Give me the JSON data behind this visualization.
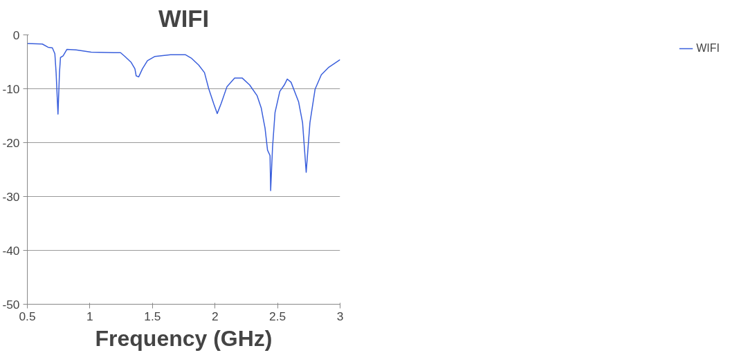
{
  "chart_data": {
    "type": "line",
    "title": "WIFI",
    "xlabel": "Frequency (GHz)",
    "xlim": [
      0.5,
      3
    ],
    "xticks": [
      0.5,
      1,
      1.5,
      2,
      2.5,
      3
    ],
    "ylim": [
      -50,
      0
    ],
    "yticks": [
      -50,
      -40,
      -30,
      -20,
      -10,
      0
    ],
    "grid": "y",
    "legend": "right",
    "marker": "none",
    "line_style": "solid",
    "series": [
      {
        "name": "WIFI",
        "color": "#3a5fdc",
        "x": [
          0.5,
          0.62,
          0.666,
          0.7,
          0.72,
          0.73,
          0.745,
          0.757,
          0.765,
          0.786,
          0.816,
          0.89,
          1.01,
          1.19,
          1.245,
          1.28,
          1.33,
          1.36,
          1.37,
          1.39,
          1.42,
          1.46,
          1.52,
          1.645,
          1.765,
          1.81,
          1.87,
          1.916,
          1.95,
          1.99,
          2.018,
          2.05,
          2.096,
          2.157,
          2.217,
          2.277,
          2.337,
          2.37,
          2.39,
          2.4,
          2.42,
          2.44,
          2.445,
          2.46,
          2.48,
          2.518,
          2.554,
          2.578,
          2.608,
          2.668,
          2.7,
          2.729,
          2.759,
          2.8,
          2.85,
          2.91,
          3.0
        ],
        "values": [
          -1.6,
          -1.7,
          -2.3,
          -2.4,
          -3.5,
          -7,
          -14.7,
          -7,
          -4.2,
          -3.9,
          -2.7,
          -2.8,
          -3.2,
          -3.3,
          -3.3,
          -4.0,
          -5.1,
          -6.3,
          -7.6,
          -7.8,
          -6.3,
          -4.8,
          -4.0,
          -3.7,
          -3.7,
          -4.3,
          -5.6,
          -7,
          -10,
          -12.8,
          -14.6,
          -12.7,
          -9.6,
          -8.0,
          -8.0,
          -9.3,
          -11.3,
          -13.6,
          -16.1,
          -17.3,
          -21.4,
          -22.4,
          -28.9,
          -20.9,
          -14.4,
          -10.5,
          -9.3,
          -8.2,
          -8.8,
          -12.4,
          -16.3,
          -25.5,
          -16.3,
          -10.1,
          -7.4,
          -6.0,
          -4.6
        ]
      }
    ]
  }
}
